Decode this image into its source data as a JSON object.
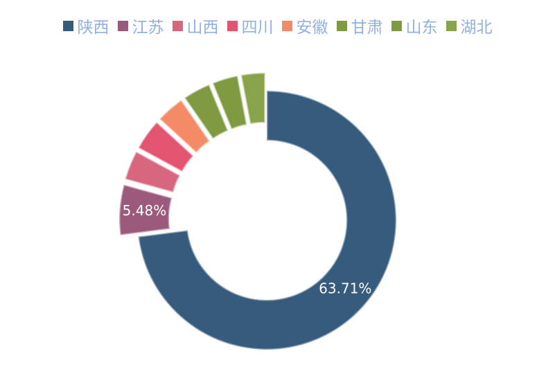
{
  "chart_data": {
    "type": "donut",
    "categories": [
      "陕西",
      "江苏",
      "山西",
      "四川",
      "安徽",
      "甘肃",
      "山东",
      "湖北"
    ],
    "values": [
      63.71,
      5.48,
      3.2,
      3.4,
      3.1,
      3.0,
      2.8,
      2.6
    ],
    "value_labels": [
      "63.71%",
      "5.48%",
      null,
      null,
      null,
      null,
      null,
      null
    ],
    "colors": [
      "#365b7c",
      "#9b5a7c",
      "#d9667f",
      "#e35470",
      "#f48a66",
      "#7f9a41",
      "#7f9a41",
      "#89a34a"
    ],
    "legend": "top"
  }
}
